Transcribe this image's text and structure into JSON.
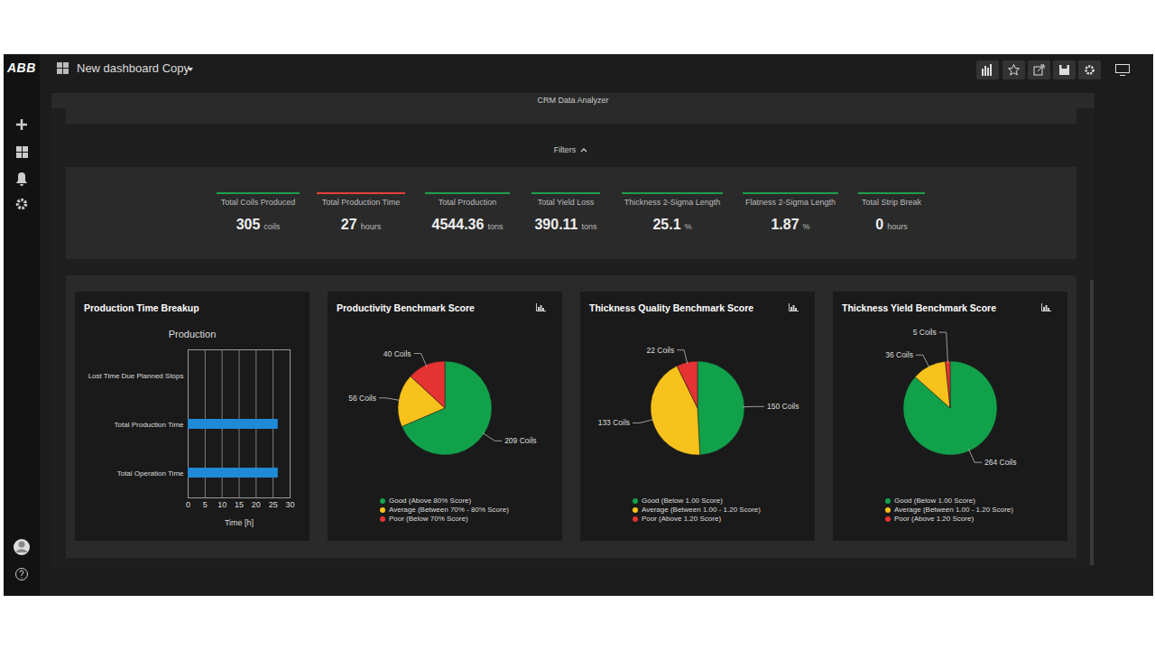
{
  "header": {
    "logo": "ABB",
    "dashboard": "New dashboard Copy"
  },
  "panel_title": "CRM Data Analyzer",
  "filters": "Filters",
  "kpis": [
    {
      "title": "Total Coils Produced",
      "value": 305,
      "unit": "coils",
      "color": "#1f9e4a"
    },
    {
      "title": "Total Production Time",
      "value": 27,
      "unit": "hours",
      "color": "#e0403a"
    },
    {
      "title": "Total Production",
      "value": 4544.36,
      "unit": "tons",
      "color": "#1f9e4a"
    },
    {
      "title": "Total Yield Loss",
      "value": 390.11,
      "unit": "tons",
      "color": "#1f9e4a"
    },
    {
      "title": "Thickness 2-Sigma Length",
      "value": 25.1,
      "unit": "%",
      "color": "#1f9e4a"
    },
    {
      "title": "Flatness 2-Sigma Length",
      "value": 1.87,
      "unit": "%",
      "color": "#1f9e4a"
    },
    {
      "title": "Total Strip Break",
      "value": 0,
      "unit": "hours",
      "color": "#1f9e4a"
    }
  ],
  "chart_data": [
    {
      "type": "bar",
      "title": "Production Time Breakup",
      "subtitle": "Production",
      "orientation": "horizontal",
      "categories": [
        "Lost Time Due Planned Stops",
        "Total Production Time",
        "Total Operation Time"
      ],
      "values": [
        0,
        26.5,
        26.5
      ],
      "color": "#1f8ad6",
      "xlim": [
        0,
        30
      ],
      "xticks": [
        0,
        5,
        10,
        15,
        20,
        25,
        30
      ],
      "x_label": "Time [h]",
      "grid": true
    },
    {
      "type": "pie",
      "title": "Productivity Benchmark Score",
      "categories": [
        "Good (Above 80% Score)",
        "Average (Between 70% - 80% Score)",
        "Poor (Below 70% Score)"
      ],
      "values": [
        209,
        56,
        40
      ],
      "value_labels": [
        "209 Coils",
        "56 Coils",
        "40 Coils"
      ],
      "colors": [
        "#12a14b",
        "#f7c21b",
        "#e53232"
      ],
      "data_labels": true,
      "legend": "bottom"
    },
    {
      "type": "pie",
      "title": "Thickness Quality Benchmark Score",
      "categories": [
        "Good (Below 1.00 Score)",
        "Average (Between 1.00 - 1.20 Score)",
        "Poor (Above 1.20 Score)"
      ],
      "values": [
        150,
        133,
        22
      ],
      "value_labels": [
        "150 Coils",
        "133 Coils",
        "22 Coils"
      ],
      "colors": [
        "#12a14b",
        "#f7c21b",
        "#e53232"
      ],
      "data_labels": true,
      "legend": "bottom"
    },
    {
      "type": "pie",
      "title": "Thickness Yield Benchmark Score",
      "categories": [
        "Good (Below 1.00 Score)",
        "Average (Between 1.00 - 1.20 Score)",
        "Poor (Above 1.20 Score)"
      ],
      "values": [
        264,
        36,
        5
      ],
      "value_labels": [
        "264 Coils",
        "36 Coils",
        "5 Coils"
      ],
      "colors": [
        "#12a14b",
        "#f7c21b",
        "#e53232"
      ],
      "data_labels": true,
      "legend": "bottom"
    }
  ]
}
